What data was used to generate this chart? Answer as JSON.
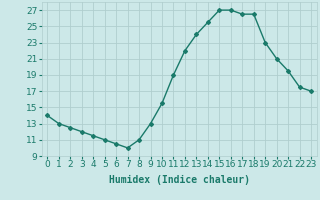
{
  "x": [
    0,
    1,
    2,
    3,
    4,
    5,
    6,
    7,
    8,
    9,
    10,
    11,
    12,
    13,
    14,
    15,
    16,
    17,
    18,
    19,
    20,
    21,
    22,
    23
  ],
  "y": [
    14,
    13,
    12.5,
    12,
    11.5,
    11,
    10.5,
    10,
    11,
    13,
    15.5,
    19,
    22,
    24,
    25.5,
    27,
    27,
    26.5,
    26.5,
    23,
    21,
    19.5,
    17.5,
    17
  ],
  "line_color": "#1a7a6a",
  "marker": "D",
  "marker_size": 2,
  "background_color": "#cce8e8",
  "grid_color": "#b0cece",
  "xlabel": "Humidex (Indice chaleur)",
  "xlim": [
    -0.5,
    23.5
  ],
  "ylim": [
    9,
    28
  ],
  "yticks": [
    9,
    11,
    13,
    15,
    17,
    19,
    21,
    23,
    25,
    27
  ],
  "xtick_labels": [
    "0",
    "1",
    "2",
    "3",
    "4",
    "5",
    "6",
    "7",
    "8",
    "9",
    "10",
    "11",
    "12",
    "13",
    "14",
    "15",
    "16",
    "17",
    "18",
    "19",
    "20",
    "21",
    "22",
    "23"
  ],
  "xlabel_fontsize": 7,
  "tick_fontsize": 6.5,
  "line_width": 1.0
}
